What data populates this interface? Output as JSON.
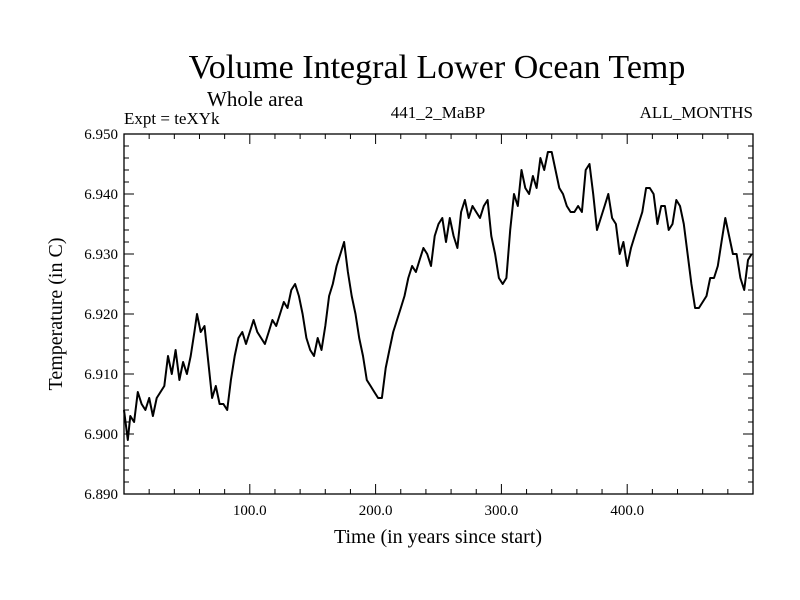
{
  "chart_data": {
    "type": "line",
    "title": "Volume Integral Lower Ocean Temp",
    "subtitle": "Whole area",
    "expt_label": "Expt = teXYk",
    "run_label": "441_2_MaBP",
    "months_label": "ALL_MONTHS",
    "xlabel": "Time (in years since start)",
    "ylabel": "Temperature (in C)",
    "xlim": [
      0,
      500
    ],
    "ylim": [
      6.89,
      6.95
    ],
    "x_ticks": [
      100,
      200,
      300,
      400
    ],
    "x_tick_labels": [
      "100.0",
      "200.0",
      "300.0",
      "400.0"
    ],
    "y_ticks": [
      6.89,
      6.9,
      6.91,
      6.92,
      6.93,
      6.94,
      6.95
    ],
    "y_tick_labels": [
      "6.890",
      "6.900",
      "6.910",
      "6.920",
      "6.930",
      "6.940",
      "6.950"
    ],
    "grid": false,
    "series": [
      {
        "color": "#000000",
        "x": [
          0,
          3,
          5,
          8,
          11,
          14,
          17,
          20,
          23,
          26,
          29,
          32,
          35,
          38,
          41,
          44,
          47,
          50,
          53,
          56,
          58,
          61,
          64,
          67,
          70,
          73,
          76,
          79,
          82,
          85,
          88,
          91,
          94,
          97,
          100,
          103,
          106,
          109,
          112,
          115,
          118,
          121,
          124,
          127,
          130,
          133,
          136,
          139,
          142,
          145,
          148,
          151,
          154,
          157,
          160,
          163,
          166,
          169,
          172,
          175,
          178,
          181,
          184,
          187,
          190,
          193,
          196,
          199,
          202,
          205,
          208,
          211,
          214,
          217,
          220,
          223,
          226,
          229,
          232,
          235,
          238,
          241,
          244,
          247,
          250,
          253,
          256,
          259,
          262,
          265,
          268,
          271,
          274,
          277,
          280,
          283,
          286,
          289,
          292,
          295,
          298,
          301,
          304,
          307,
          310,
          313,
          316,
          319,
          322,
          325,
          328,
          331,
          334,
          337,
          340,
          343,
          346,
          349,
          352,
          355,
          358,
          361,
          364,
          367,
          370,
          373,
          376,
          379,
          382,
          385,
          388,
          391,
          394,
          397,
          400,
          403,
          406,
          409,
          412,
          415,
          418,
          421,
          424,
          427,
          430,
          433,
          436,
          439,
          442,
          445,
          448,
          451,
          454,
          457,
          460,
          463,
          466,
          469,
          472,
          475,
          478,
          481,
          484,
          487,
          490,
          493,
          496,
          499
        ],
        "y": [
          6.904,
          6.899,
          6.903,
          6.902,
          6.907,
          6.905,
          6.904,
          6.906,
          6.903,
          6.906,
          6.907,
          6.908,
          6.913,
          6.91,
          6.914,
          6.909,
          6.912,
          6.91,
          6.913,
          6.917,
          6.92,
          6.917,
          6.918,
          6.912,
          6.906,
          6.908,
          6.905,
          6.905,
          6.904,
          6.909,
          6.913,
          6.916,
          6.917,
          6.915,
          6.917,
          6.919,
          6.917,
          6.916,
          6.915,
          6.917,
          6.919,
          6.918,
          6.92,
          6.922,
          6.921,
          6.924,
          6.925,
          6.923,
          6.92,
          6.916,
          6.914,
          6.913,
          6.916,
          6.914,
          6.918,
          6.923,
          6.925,
          6.928,
          6.93,
          6.932,
          6.927,
          6.923,
          6.92,
          6.916,
          6.913,
          6.909,
          6.908,
          6.907,
          6.906,
          6.906,
          6.911,
          6.914,
          6.917,
          6.919,
          6.921,
          6.923,
          6.926,
          6.928,
          6.927,
          6.929,
          6.931,
          6.93,
          6.928,
          6.933,
          6.935,
          6.936,
          6.932,
          6.936,
          6.933,
          6.931,
          6.937,
          6.939,
          6.936,
          6.938,
          6.937,
          6.936,
          6.938,
          6.939,
          6.933,
          6.93,
          6.926,
          6.925,
          6.926,
          6.934,
          6.94,
          6.938,
          6.944,
          6.941,
          6.94,
          6.943,
          6.941,
          6.946,
          6.944,
          6.947,
          6.947,
          6.944,
          6.941,
          6.94,
          6.938,
          6.937,
          6.937,
          6.938,
          6.937,
          6.944,
          6.945,
          6.94,
          6.934,
          6.936,
          6.938,
          6.94,
          6.936,
          6.935,
          6.93,
          6.932,
          6.928,
          6.931,
          6.933,
          6.935,
          6.937,
          6.941,
          6.941,
          6.94,
          6.935,
          6.938,
          6.938,
          6.934,
          6.935,
          6.939,
          6.938,
          6.935,
          6.93,
          6.925,
          6.921,
          6.921,
          6.922,
          6.923,
          6.926,
          6.926,
          6.928,
          6.932,
          6.936,
          6.933,
          6.93,
          6.93,
          6.926,
          6.924,
          6.929,
          6.93
        ]
      }
    ]
  }
}
